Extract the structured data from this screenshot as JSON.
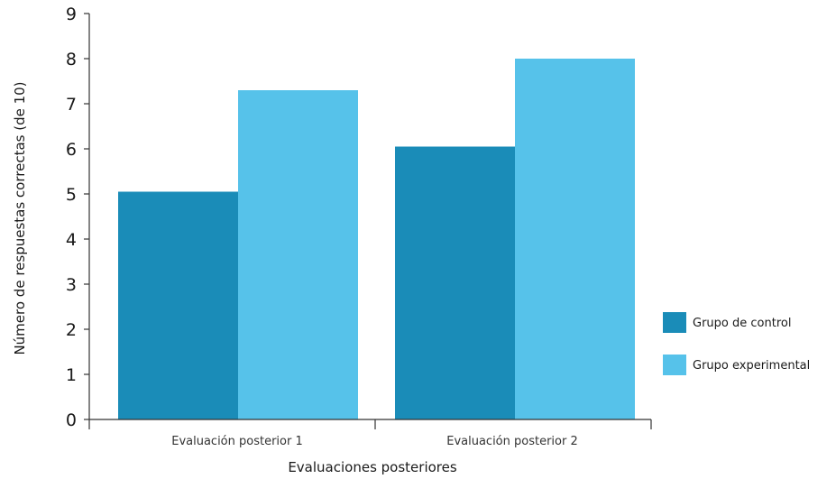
{
  "chart_data": {
    "type": "bar",
    "categories": [
      "Evaluación posterior 1",
      "Evaluación posterior 2"
    ],
    "series": [
      {
        "name": "Grupo de control",
        "values": [
          5.05,
          6.05
        ],
        "color": "#1A8CB8"
      },
      {
        "name": "Grupo experimental",
        "values": [
          7.3,
          8.0
        ],
        "color": "#56C2EA"
      }
    ],
    "yticks": [
      "0",
      "1",
      "2",
      "3",
      "4",
      "5",
      "6",
      "7",
      "8",
      "9"
    ],
    "ylim": [
      0,
      9
    ],
    "xlabel": "Evaluaciones posteriores",
    "ylabel": "Número de respuestas correctas (de 10)",
    "legend_position": "right",
    "grid": false
  }
}
